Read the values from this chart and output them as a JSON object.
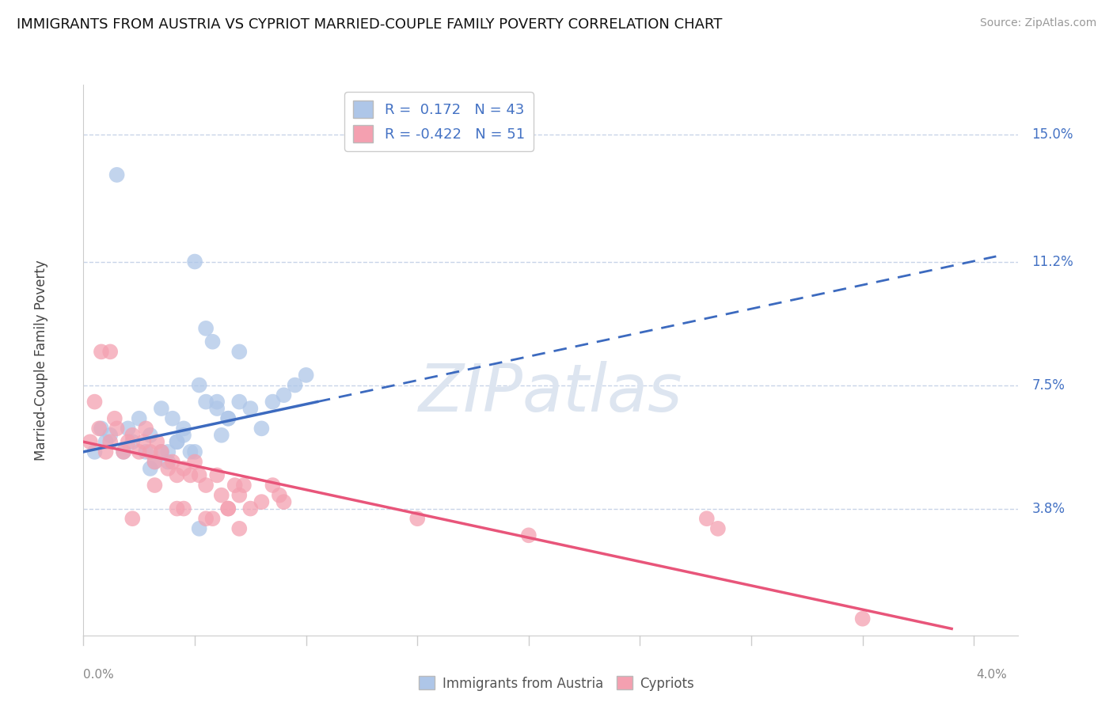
{
  "title": "IMMIGRANTS FROM AUSTRIA VS CYPRIOT MARRIED-COUPLE FAMILY POVERTY CORRELATION CHART",
  "source": "Source: ZipAtlas.com",
  "watermark": "ZIPatlas",
  "legend_blue_r": "0.172",
  "legend_blue_n": "43",
  "legend_pink_r": "-0.422",
  "legend_pink_n": "51",
  "ylabel": "Married-Couple Family Poverty",
  "legend_blue_label": "Immigrants from Austria",
  "legend_pink_label": "Cypriots",
  "right_yticks": [
    3.8,
    7.5,
    11.2,
    15.0
  ],
  "right_ytick_labels": [
    "3.8%",
    "7.5%",
    "11.2%",
    "15.0%"
  ],
  "blue_color": "#aec6e8",
  "pink_color": "#f4a0b0",
  "trend_blue_color": "#3c6abf",
  "trend_pink_color": "#e8557a",
  "grid_color": "#c8d4e8",
  "background_color": "#ffffff",
  "ymin": 0.0,
  "ymax": 16.5,
  "xmin": 0.0,
  "xmax": 4.2,
  "blue_scatter_x": [
    0.05,
    0.08,
    0.1,
    0.12,
    0.15,
    0.18,
    0.2,
    0.22,
    0.25,
    0.28,
    0.3,
    0.32,
    0.35,
    0.38,
    0.4,
    0.42,
    0.45,
    0.48,
    0.5,
    0.52,
    0.55,
    0.58,
    0.6,
    0.62,
    0.65,
    0.7,
    0.75,
    0.8,
    0.85,
    0.9,
    0.95,
    1.0,
    0.3,
    0.5,
    0.55,
    0.38,
    0.42,
    0.6,
    0.7,
    0.35,
    0.45,
    0.65,
    0.52
  ],
  "blue_scatter_y": [
    5.5,
    6.2,
    5.8,
    6.0,
    13.8,
    5.5,
    6.2,
    5.8,
    6.5,
    5.5,
    6.0,
    5.2,
    6.8,
    5.5,
    6.5,
    5.8,
    6.2,
    5.5,
    11.2,
    7.5,
    9.2,
    8.8,
    7.0,
    6.0,
    6.5,
    8.5,
    6.8,
    6.2,
    7.0,
    7.2,
    7.5,
    7.8,
    5.0,
    5.5,
    7.0,
    5.2,
    5.8,
    6.8,
    7.0,
    5.5,
    6.0,
    6.5,
    3.2
  ],
  "pink_scatter_x": [
    0.03,
    0.05,
    0.07,
    0.08,
    0.1,
    0.12,
    0.14,
    0.15,
    0.18,
    0.2,
    0.22,
    0.25,
    0.27,
    0.28,
    0.3,
    0.32,
    0.33,
    0.35,
    0.38,
    0.4,
    0.42,
    0.45,
    0.48,
    0.5,
    0.52,
    0.55,
    0.58,
    0.6,
    0.62,
    0.65,
    0.68,
    0.7,
    0.72,
    0.75,
    0.8,
    0.85,
    0.88,
    0.9,
    0.32,
    0.42,
    0.55,
    0.65,
    2.8,
    2.85,
    0.12,
    0.22,
    0.45,
    0.7,
    1.5,
    2.0,
    3.5
  ],
  "pink_scatter_y": [
    5.8,
    7.0,
    6.2,
    8.5,
    5.5,
    5.8,
    6.5,
    6.2,
    5.5,
    5.8,
    6.0,
    5.5,
    5.8,
    6.2,
    5.5,
    5.2,
    5.8,
    5.5,
    5.0,
    5.2,
    4.8,
    5.0,
    4.8,
    5.2,
    4.8,
    4.5,
    3.5,
    4.8,
    4.2,
    3.8,
    4.5,
    4.2,
    4.5,
    3.8,
    4.0,
    4.5,
    4.2,
    4.0,
    4.5,
    3.8,
    3.5,
    3.8,
    3.5,
    3.2,
    8.5,
    3.5,
    3.8,
    3.2,
    3.5,
    3.0,
    0.5
  ],
  "blue_trend_x0": 0.0,
  "blue_trend_x1": 1.05,
  "blue_trend_x_dash": 4.1,
  "blue_trend_y0": 5.5,
  "blue_trend_y1": 7.0,
  "pink_trend_x0": 0.0,
  "pink_trend_x1": 3.9,
  "pink_trend_y0": 5.8,
  "pink_trend_y1": 0.2
}
